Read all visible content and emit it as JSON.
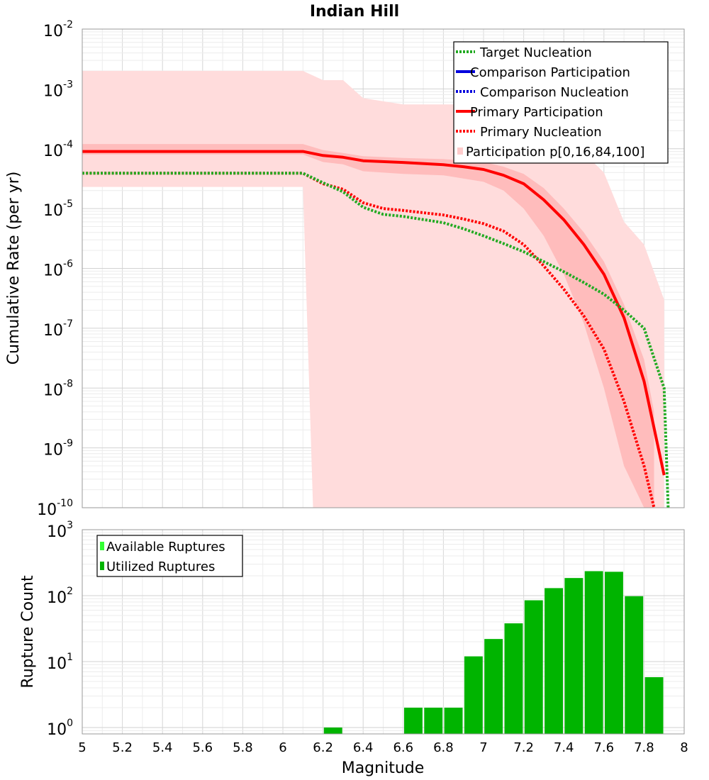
{
  "chart_data": [
    {
      "type": "line",
      "title": "Indian Hill",
      "ylabel": "Cumulative Rate (per yr)",
      "xlabel": "",
      "xlim": [
        5,
        8
      ],
      "ylim": [
        1e-10,
        0.01
      ],
      "yscale": "log",
      "grid": true,
      "legend_position": "top-right",
      "x_ticks": [
        "5",
        "5.2",
        "5.4",
        "5.6",
        "5.8",
        "6",
        "6.2",
        "6.4",
        "6.6",
        "6.8",
        "7",
        "7.2",
        "7.4",
        "7.6",
        "7.8",
        "8"
      ],
      "y_ticks": [
        {
          "base": "10",
          "exp": "-10",
          "value": 1e-10
        },
        {
          "base": "10",
          "exp": "-9",
          "value": 1e-09
        },
        {
          "base": "10",
          "exp": "-8",
          "value": 1e-08
        },
        {
          "base": "10",
          "exp": "-7",
          "value": 1e-07
        },
        {
          "base": "10",
          "exp": "-6",
          "value": 1e-06
        },
        {
          "base": "10",
          "exp": "-5",
          "value": 1e-05
        },
        {
          "base": "10",
          "exp": "-4",
          "value": 0.0001
        },
        {
          "base": "10",
          "exp": "-3",
          "value": 0.001
        },
        {
          "base": "10",
          "exp": "-2",
          "value": 0.01
        }
      ],
      "legend": [
        {
          "label": "Target Nucleation",
          "color": "#22aa22",
          "style": "dotted"
        },
        {
          "label": "Comparison Participation",
          "color": "#0000dd",
          "style": "solid"
        },
        {
          "label": "Comparison Nucleation",
          "color": "#0000dd",
          "style": "dotted"
        },
        {
          "label": "Primary Participation",
          "color": "#ff0000",
          "style": "solid"
        },
        {
          "label": "Primary Nucleation",
          "color": "#ff0000",
          "style": "dotted"
        },
        {
          "label": "Participation p[0,16,84,100]",
          "color": "#ffcccc",
          "style": "band"
        }
      ],
      "bands": [
        {
          "name": "p0-p100",
          "color": "#ffdcdc",
          "x_upper": [
            5.0,
            6.1,
            6.2,
            6.3,
            6.4,
            6.6,
            6.8,
            7.0,
            7.2,
            7.4,
            7.6,
            7.7,
            7.8,
            7.9
          ],
          "upper": [
            0.002,
            0.002,
            0.0014,
            0.0014,
            0.0007,
            0.00055,
            0.00055,
            0.00055,
            0.0004,
            0.00018,
            4e-05,
            6e-06,
            2.5e-06,
            3e-07
          ],
          "x_lower": [
            5.0,
            6.1,
            6.15
          ],
          "lower": [
            2.3e-05,
            2.3e-05,
            1e-10
          ]
        },
        {
          "name": "p16-p84",
          "color": "#ffbcbc",
          "x": [
            5.0,
            6.1,
            6.2,
            6.3,
            6.4,
            6.6,
            6.8,
            7.0,
            7.1,
            7.2,
            7.3,
            7.4,
            7.5,
            7.6,
            7.7,
            7.8,
            7.85
          ],
          "upper": [
            0.00012,
            0.00012,
            9.5e-05,
            8.5e-05,
            7.5e-05,
            7e-05,
            6.7e-05,
            6e-05,
            5e-05,
            3.8e-05,
            2.2e-05,
            1e-05,
            4e-06,
            1.3e-06,
            2.5e-07,
            3e-08,
            4e-09
          ],
          "lower": [
            8e-05,
            8e-05,
            6e-05,
            5.5e-05,
            4.2e-05,
            3.8e-05,
            3.6e-05,
            2.8e-05,
            2e-05,
            1e-05,
            3.5e-06,
            8e-07,
            1.2e-07,
            1e-08,
            5e-10,
            1e-10,
            1e-10
          ]
        }
      ],
      "series": [
        {
          "name": "Primary Participation",
          "color": "#ff0000",
          "style": "solid",
          "x": [
            5.0,
            6.1,
            6.2,
            6.3,
            6.4,
            6.6,
            6.8,
            6.9,
            7.0,
            7.1,
            7.2,
            7.3,
            7.4,
            7.5,
            7.6,
            7.7,
            7.8,
            7.9
          ],
          "y": [
            9e-05,
            9e-05,
            7.7e-05,
            7.2e-05,
            6.3e-05,
            5.9e-05,
            5.4e-05,
            5e-05,
            4.5e-05,
            3.6e-05,
            2.6e-05,
            1.4e-05,
            6.5e-06,
            2.5e-06,
            8e-07,
            1.5e-07,
            1.3e-08,
            3.5e-10
          ]
        },
        {
          "name": "Primary Nucleation",
          "color": "#ff0000",
          "style": "dotted",
          "x": [
            5.0,
            6.1,
            6.2,
            6.3,
            6.4,
            6.5,
            6.6,
            6.8,
            6.9,
            7.0,
            7.1,
            7.2,
            7.3,
            7.4,
            7.5,
            7.6,
            7.7,
            7.8,
            7.85
          ],
          "y": [
            3.9e-05,
            3.9e-05,
            2.6e-05,
            2.1e-05,
            1.25e-05,
            1e-05,
            9.3e-06,
            7.8e-06,
            6.7e-06,
            5.6e-06,
            4.2e-06,
            2.5e-06,
            1.1e-06,
            4.5e-07,
            1.6e-07,
            4.5e-08,
            6e-09,
            5e-10,
            1e-10
          ]
        },
        {
          "name": "Target Nucleation",
          "color": "#22aa22",
          "style": "dotted",
          "x": [
            5.0,
            6.1,
            6.2,
            6.3,
            6.4,
            6.5,
            6.6,
            6.8,
            6.9,
            7.0,
            7.1,
            7.2,
            7.3,
            7.4,
            7.5,
            7.6,
            7.7,
            7.8,
            7.9,
            7.92
          ],
          "y": [
            3.9e-05,
            3.9e-05,
            2.7e-05,
            1.9e-05,
            1.05e-05,
            8e-06,
            7.4e-06,
            5.8e-06,
            4.6e-06,
            3.5e-06,
            2.6e-06,
            1.9e-06,
            1.3e-06,
            8.8e-07,
            5.8e-07,
            3.7e-07,
            2e-07,
            1e-07,
            1e-08,
            1e-10
          ]
        }
      ]
    },
    {
      "type": "bar",
      "title": "",
      "ylabel": "Rupture Count",
      "xlabel": "Magnitude",
      "xlim": [
        5,
        8
      ],
      "ylim": [
        0.8,
        1000
      ],
      "yscale": "log",
      "grid": true,
      "legend_position": "top-left",
      "x_ticks": [
        "5",
        "5.2",
        "5.4",
        "5.6",
        "5.8",
        "6",
        "6.2",
        "6.4",
        "6.6",
        "6.8",
        "7",
        "7.2",
        "7.4",
        "7.6",
        "7.8",
        "8"
      ],
      "y_ticks": [
        {
          "base": "10",
          "exp": "0",
          "value": 1
        },
        {
          "base": "10",
          "exp": "1",
          "value": 10
        },
        {
          "base": "10",
          "exp": "2",
          "value": 100
        },
        {
          "base": "10",
          "exp": "3",
          "value": 1000
        }
      ],
      "legend": [
        {
          "label": "Available Ruptures",
          "color": "#33ff33"
        },
        {
          "label": "Utilized Ruptures",
          "color": "#00b400"
        }
      ],
      "series": [
        {
          "name": "Utilized Ruptures",
          "color": "#00b400",
          "x": [
            6.25,
            6.65,
            6.75,
            6.85,
            6.95,
            7.05,
            7.15,
            7.25,
            7.35,
            7.45,
            7.55,
            7.65,
            7.75,
            7.85
          ],
          "values": [
            1,
            2,
            2,
            2,
            12,
            22,
            38,
            85,
            130,
            185,
            235,
            230,
            98,
            5.8
          ]
        }
      ]
    }
  ]
}
